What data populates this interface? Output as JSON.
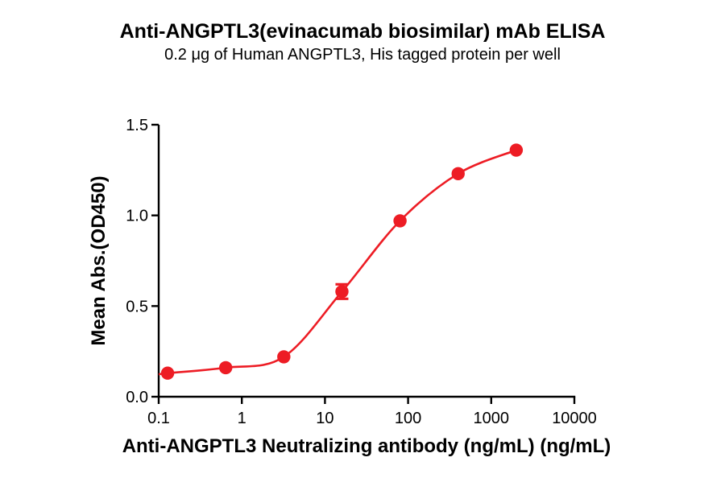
{
  "chart_data": {
    "type": "scatter",
    "title": "Anti-ANGPTL3(evinacumab biosimilar) mAb ELISA",
    "subtitle": "0.2 μg of Human ANGPTL3, His tagged protein per well",
    "xlabel": "Anti-ANGPTL3 Neutralizing antibody (ng/mL) (ng/mL)",
    "ylabel": "Mean Abs.(OD450)",
    "x_scale": "log10",
    "xlim": [
      0.1,
      10000
    ],
    "ylim": [
      0.0,
      1.5
    ],
    "x_tick_values": [
      0.1,
      1,
      10,
      100,
      1000,
      10000
    ],
    "x_tick_labels": [
      "0.1",
      "1",
      "10",
      "100",
      "1000",
      "10000"
    ],
    "y_tick_values": [
      0.0,
      0.5,
      1.0,
      1.5
    ],
    "y_tick_labels": [
      "0.0",
      "0.5",
      "1.0",
      "1.5"
    ],
    "grid": false,
    "legend": false,
    "curve_type": "sigmoidal dose-response fit",
    "colors": {
      "series": "#ED1C24",
      "axis": "#000000",
      "background": "#FFFFFF"
    },
    "points": [
      {
        "x": 0.128,
        "y": 0.13,
        "y_err": 0
      },
      {
        "x": 0.64,
        "y": 0.16,
        "y_err": 0
      },
      {
        "x": 3.2,
        "y": 0.22,
        "y_err": 0
      },
      {
        "x": 16,
        "y": 0.58,
        "y_err": 0.04
      },
      {
        "x": 80,
        "y": 0.97,
        "y_err": 0
      },
      {
        "x": 400,
        "y": 1.23,
        "y_err": 0
      },
      {
        "x": 2000,
        "y": 1.36,
        "y_err": 0
      }
    ]
  }
}
